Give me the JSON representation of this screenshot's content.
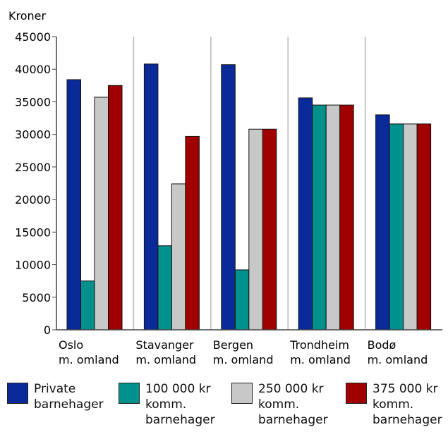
{
  "chart_data": {
    "type": "bar",
    "ylabel": "Kroner",
    "xlabel": "",
    "title": "",
    "ylim": [
      0,
      45000
    ],
    "yticks": [
      0,
      5000,
      10000,
      15000,
      20000,
      25000,
      30000,
      35000,
      40000,
      45000
    ],
    "categories": [
      {
        "line1": "Oslo",
        "line2": "m. omland"
      },
      {
        "line1": "Stavanger",
        "line2": "m. omland"
      },
      {
        "line1": "Bergen",
        "line2": "m. omland"
      },
      {
        "line1": "Trondheim",
        "line2": "m. omland"
      },
      {
        "line1": "Bodø",
        "line2": "m. omland"
      }
    ],
    "series": [
      {
        "name": "Private\nbarnehager",
        "color": "#0a2a9a",
        "values": [
          38400,
          40800,
          40700,
          35600,
          33000
        ]
      },
      {
        "name": "100 000 kr\nkomm.\nbarnehager",
        "color": "#00918c",
        "values": [
          7500,
          12900,
          9200,
          34500,
          31600
        ]
      },
      {
        "name": "250 000 kr\nkomm.\nbarnehager",
        "color": "#c8c8c8",
        "values": [
          35700,
          22400,
          30800,
          34500,
          31600
        ]
      },
      {
        "name": "375 000 kr\nkomm.\nbarnehager",
        "color": "#a00000",
        "values": [
          37500,
          29700,
          30800,
          34500,
          31600
        ]
      }
    ],
    "grid": "vertical separators between categories",
    "legend": "bottom"
  }
}
